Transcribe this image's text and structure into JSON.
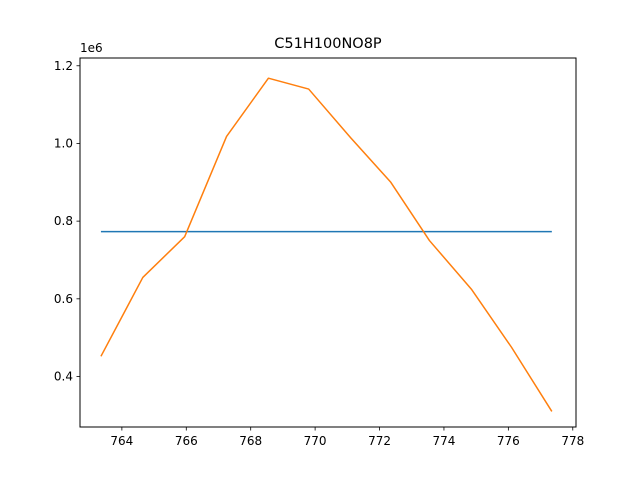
{
  "chart_data": {
    "type": "line",
    "title": "C51H100NO8P",
    "xlabel": "",
    "ylabel": "",
    "y_offset_label": "1e6",
    "xlim": [
      762.7,
      778.1
    ],
    "ylim": [
      0.27,
      1.22
    ],
    "xticks": [
      764,
      766,
      768,
      770,
      772,
      774,
      776,
      778
    ],
    "xtick_labels": [
      "764",
      "766",
      "768",
      "770",
      "772",
      "774",
      "776",
      "778"
    ],
    "yticks": [
      0.4,
      0.6,
      0.8,
      1.0,
      1.2
    ],
    "ytick_labels": [
      "0.4",
      "0.6",
      "0.8",
      "1.0",
      "1.2"
    ],
    "grid": false,
    "series": [
      {
        "color": "#1f77b4",
        "x": [
          763.35,
          777.35
        ],
        "y": [
          0.773,
          0.773
        ]
      },
      {
        "color": "#ff7f0e",
        "x": [
          763.35,
          764.65,
          765.95,
          767.25,
          768.55,
          769.8,
          771.1,
          772.35,
          773.55,
          774.85,
          776.1,
          777.35
        ],
        "y": [
          0.452,
          0.655,
          0.76,
          1.018,
          1.168,
          1.14,
          1.015,
          0.9,
          0.75,
          0.625,
          0.475,
          0.31
        ]
      }
    ]
  }
}
